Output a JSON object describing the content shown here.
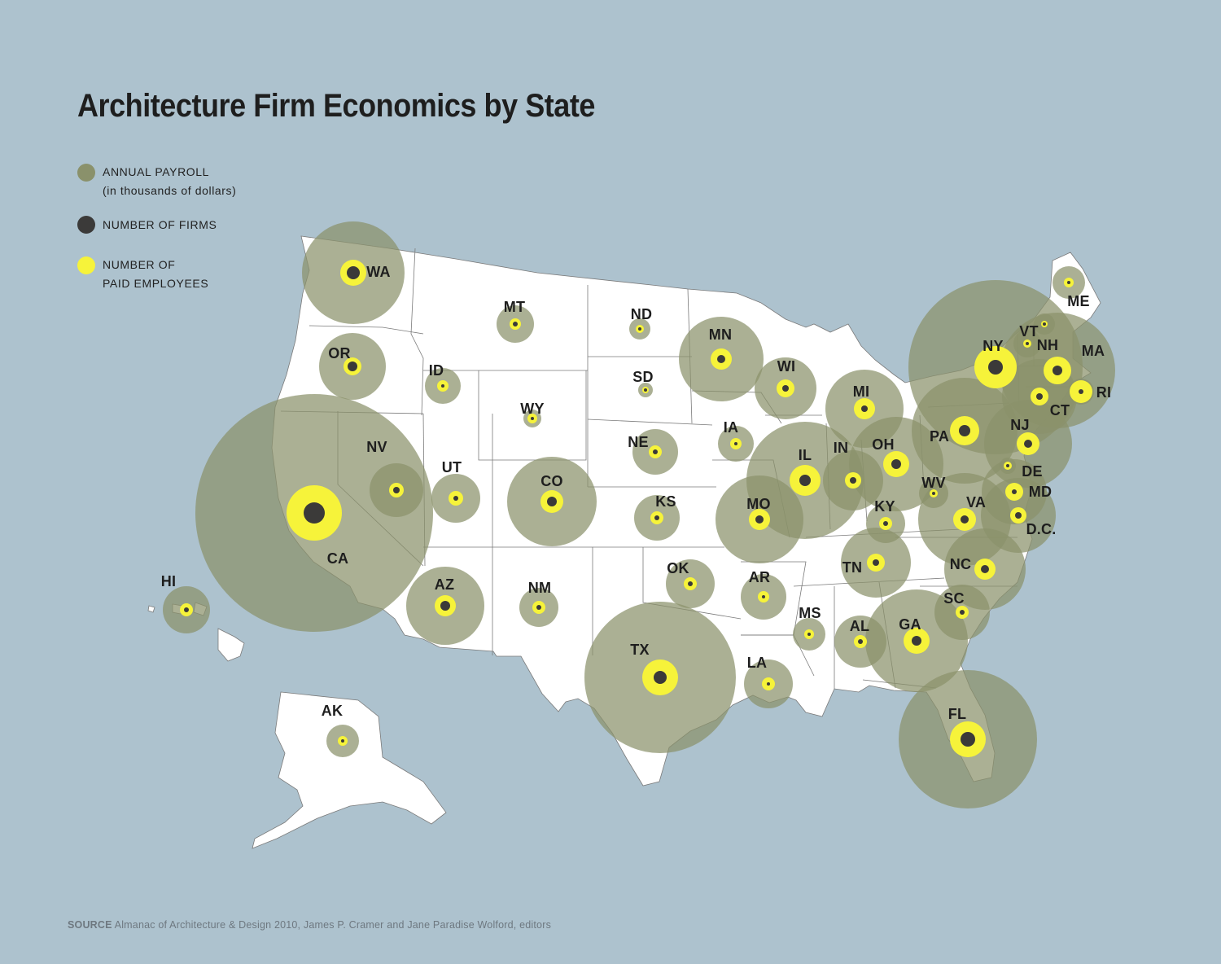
{
  "title": "Architecture Firm Economics by State",
  "legend": {
    "payroll_line1": "ANNUAL PAYROLL",
    "payroll_line2": "(in thousands of dollars)",
    "firms": "NUMBER OF FIRMS",
    "employees_line1": "NUMBER OF",
    "employees_line2": "PAID EMPLOYEES"
  },
  "colors": {
    "payroll": "#8a916b",
    "firms": "#3b3a39",
    "employees": "#f6f33a",
    "land": "#ffffff",
    "water": "#adc2ce"
  },
  "states": [
    {
      "code": "WA"
    },
    {
      "code": "OR"
    },
    {
      "code": "CA"
    },
    {
      "code": "NV"
    },
    {
      "code": "ID"
    },
    {
      "code": "MT"
    },
    {
      "code": "WY"
    },
    {
      "code": "UT"
    },
    {
      "code": "CO"
    },
    {
      "code": "AZ"
    },
    {
      "code": "NM"
    },
    {
      "code": "ND"
    },
    {
      "code": "SD"
    },
    {
      "code": "NE"
    },
    {
      "code": "KS"
    },
    {
      "code": "OK"
    },
    {
      "code": "TX"
    },
    {
      "code": "MN"
    },
    {
      "code": "IA"
    },
    {
      "code": "MO"
    },
    {
      "code": "AR"
    },
    {
      "code": "LA"
    },
    {
      "code": "WI"
    },
    {
      "code": "IL"
    },
    {
      "code": "MI"
    },
    {
      "code": "IN"
    },
    {
      "code": "OH"
    },
    {
      "code": "KY"
    },
    {
      "code": "TN"
    },
    {
      "code": "MS"
    },
    {
      "code": "AL"
    },
    {
      "code": "GA"
    },
    {
      "code": "FL"
    },
    {
      "code": "SC"
    },
    {
      "code": "NC"
    },
    {
      "code": "VA"
    },
    {
      "code": "WV"
    },
    {
      "code": "PA"
    },
    {
      "code": "NY"
    },
    {
      "code": "VT"
    },
    {
      "code": "NH"
    },
    {
      "code": "ME"
    },
    {
      "code": "MA"
    },
    {
      "code": "RI"
    },
    {
      "code": "CT"
    },
    {
      "code": "NJ"
    },
    {
      "code": "DE"
    },
    {
      "code": "MD"
    },
    {
      "code": "D.C."
    },
    {
      "code": "HI"
    },
    {
      "code": "AK"
    }
  ],
  "source_label": "SOURCE",
  "source_text": "Almanac of Architecture & Design 2010, James P. Cramer and Jane Paradise Wolford, editors"
}
